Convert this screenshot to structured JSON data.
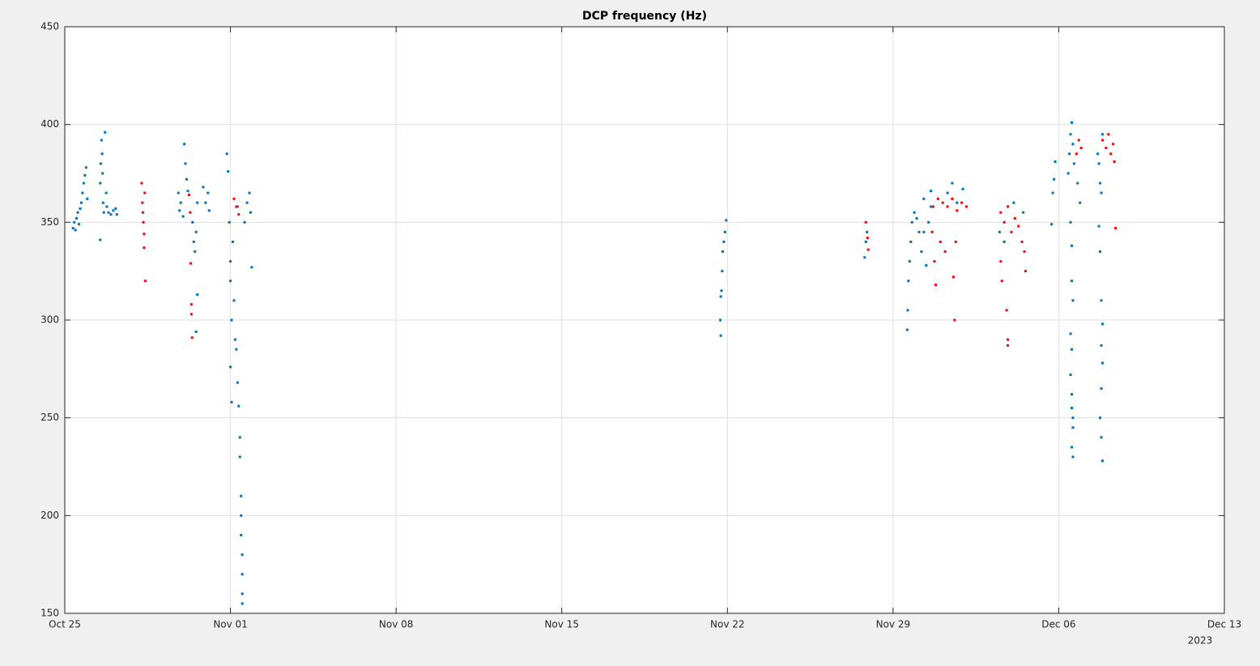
{
  "chart_data": {
    "type": "scatter",
    "title": "DCP frequency (Hz)",
    "year_label": "2023",
    "xlim": [
      0,
      49
    ],
    "xticks": [
      {
        "value": 0,
        "label": "Oct 25"
      },
      {
        "value": 7,
        "label": "Nov 01"
      },
      {
        "value": 14,
        "label": "Nov 08"
      },
      {
        "value": 21,
        "label": "Nov 15"
      },
      {
        "value": 28,
        "label": "Nov 22"
      },
      {
        "value": 35,
        "label": "Nov 29"
      },
      {
        "value": 42,
        "label": "Dec 06"
      },
      {
        "value": 49,
        "label": "Dec 13"
      }
    ],
    "ylim": [
      150,
      450
    ],
    "yticks": [
      150,
      200,
      250,
      300,
      350,
      400,
      450
    ],
    "grid": true,
    "series": [
      {
        "color": "#0072bd",
        "x": [
          0.35,
          0.4,
          0.45,
          0.5,
          0.55,
          0.6,
          0.65,
          0.7,
          0.75,
          0.8,
          0.85,
          0.9,
          0.95,
          1.5,
          1.52,
          1.55,
          1.58,
          1.6,
          1.62,
          1.65,
          1.5,
          1.7,
          1.75,
          1.78,
          1.85,
          1.95,
          2.05,
          2.15,
          2.2,
          4.8,
          4.85,
          4.9,
          5.0,
          5.05,
          5.1,
          5.15,
          5.2,
          5.4,
          5.45,
          5.5,
          5.55,
          5.6,
          5.55,
          5.6,
          5.85,
          5.95,
          6.05,
          6.1,
          6.85,
          6.9,
          6.95,
          7.0,
          7.0,
          7.05,
          7.0,
          7.05,
          7.1,
          7.15,
          7.2,
          7.25,
          7.3,
          7.35,
          7.4,
          7.4,
          7.45,
          7.45,
          7.45,
          7.5,
          7.5,
          7.5,
          7.5,
          7.3,
          7.6,
          7.7,
          7.8,
          7.85,
          7.9,
          27.7,
          27.72,
          27.75,
          27.78,
          27.8,
          27.85,
          27.9,
          27.95,
          27.72,
          33.8,
          33.85,
          33.9,
          35.6,
          35.62,
          35.65,
          35.7,
          35.75,
          35.8,
          35.9,
          36.0,
          36.1,
          36.2,
          36.3,
          36.4,
          36.5,
          36.6,
          36.3,
          36.6,
          37.3,
          37.5,
          37.7,
          37.95,
          39.5,
          39.7,
          40.1,
          40.5,
          41.7,
          41.75,
          41.8,
          41.85,
          42.4,
          42.45,
          42.5,
          42.55,
          42.6,
          42.65,
          42.5,
          42.55,
          42.55,
          42.6,
          42.5,
          42.55,
          42.5,
          42.55,
          42.55,
          42.6,
          42.6,
          42.55,
          42.6,
          42.8,
          42.9,
          43.65,
          43.7,
          43.75,
          43.8,
          43.85,
          43.7,
          43.75,
          43.8,
          43.85,
          43.8,
          43.85,
          43.8,
          43.75,
          43.8,
          43.85
        ],
        "values": [
          347,
          350,
          346,
          352,
          355,
          349,
          357,
          360,
          365,
          370,
          374,
          378,
          362,
          370,
          380,
          392,
          385,
          375,
          360,
          355,
          341,
          396,
          365,
          358,
          355,
          354,
          356,
          357,
          354,
          365,
          356,
          360,
          353,
          390,
          380,
          372,
          366,
          350,
          340,
          335,
          345,
          313,
          294,
          360,
          368,
          360,
          365,
          356,
          385,
          376,
          350,
          330,
          320,
          300,
          276,
          258,
          340,
          310,
          290,
          285,
          268,
          256,
          240,
          230,
          210,
          200,
          190,
          180,
          170,
          160,
          155,
          358,
          350,
          360,
          365,
          355,
          327,
          300,
          292,
          315,
          325,
          335,
          340,
          345,
          351,
          312,
          332,
          340,
          345,
          295,
          305,
          320,
          330,
          340,
          350,
          355,
          352,
          345,
          335,
          345,
          328,
          350,
          358,
          362,
          366,
          365,
          370,
          360,
          367,
          345,
          340,
          360,
          355,
          349,
          365,
          372,
          381,
          375,
          385,
          395,
          401,
          390,
          380,
          350,
          338,
          320,
          310,
          293,
          285,
          272,
          262,
          255,
          250,
          245,
          235,
          230,
          370,
          360,
          385,
          380,
          370,
          365,
          395,
          348,
          335,
          310,
          298,
          287,
          278,
          265,
          250,
          240,
          228
        ]
      },
      {
        "color": "#ff0000",
        "x": [
          3.25,
          3.28,
          3.3,
          3.32,
          3.35,
          3.35,
          3.4,
          3.38,
          5.25,
          5.3,
          5.32,
          5.35,
          5.35,
          5.38,
          7.15,
          7.25,
          7.35,
          33.85,
          33.92,
          33.95,
          36.7,
          36.9,
          37.1,
          37.3,
          37.5,
          37.7,
          37.9,
          38.1,
          36.65,
          36.75,
          36.8,
          37.0,
          37.6,
          37.55,
          37.65,
          37.2,
          39.55,
          39.7,
          39.85,
          40.0,
          40.15,
          40.3,
          40.45,
          40.55,
          40.6,
          39.55,
          39.6,
          39.8,
          39.85,
          39.85,
          42.75,
          42.85,
          42.95,
          43.85,
          44.0,
          44.1,
          44.2,
          44.3,
          44.35,
          44.4
        ],
        "values": [
          370,
          360,
          355,
          350,
          344,
          337,
          320,
          365,
          364,
          355,
          329,
          308,
          303,
          291,
          362,
          358,
          354,
          350,
          342,
          336,
          358,
          362,
          360,
          358,
          362,
          356,
          360,
          358,
          345,
          330,
          318,
          340,
          300,
          322,
          340,
          335,
          355,
          350,
          358,
          345,
          352,
          348,
          340,
          335,
          325,
          330,
          320,
          305,
          290,
          287,
          385,
          392,
          388,
          392,
          388,
          395,
          385,
          390,
          381,
          347
        ]
      }
    ]
  }
}
